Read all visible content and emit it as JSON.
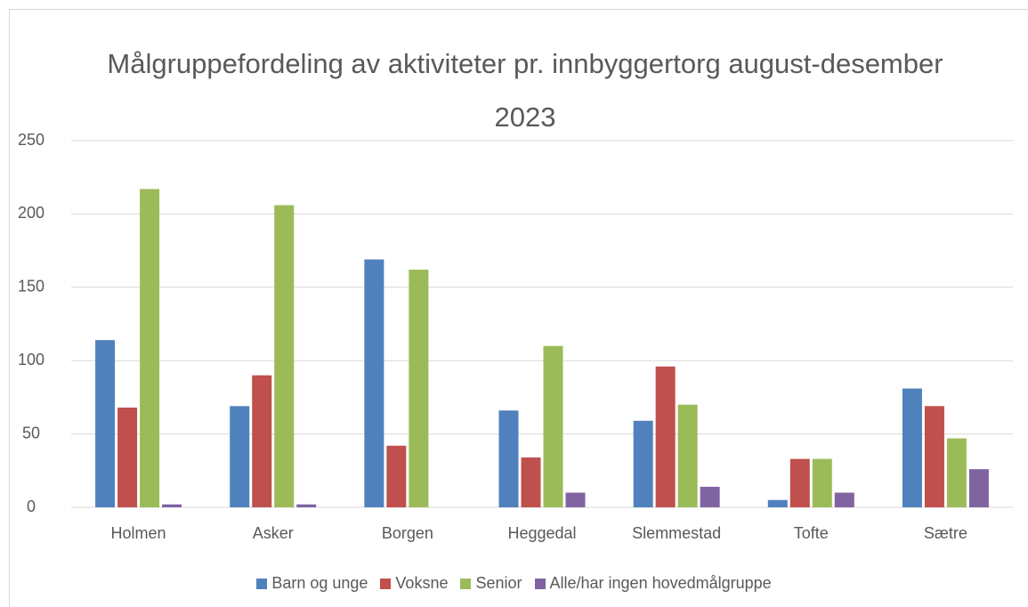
{
  "chart_data": {
    "type": "bar",
    "title": "Målgruppefordeling av aktiviteter pr. innbyggertorg august-desember 2023",
    "categories": [
      "Holmen",
      "Asker",
      "Borgen",
      "Heggedal",
      "Slemmestad",
      "Tofte",
      "Sætre"
    ],
    "series": [
      {
        "name": "Barn og unge",
        "color": "#4f81bd",
        "values": [
          114,
          69,
          169,
          66,
          59,
          5,
          81
        ]
      },
      {
        "name": "Voksne",
        "color": "#c0504d",
        "values": [
          68,
          90,
          42,
          34,
          96,
          33,
          69
        ]
      },
      {
        "name": "Senior",
        "color": "#9bbb59",
        "values": [
          217,
          206,
          162,
          110,
          70,
          33,
          47
        ]
      },
      {
        "name": "Alle/har ingen hovedmålgruppe",
        "color": "#8064a2",
        "values": [
          2,
          2,
          0,
          10,
          14,
          10,
          26
        ]
      }
    ],
    "ylim": [
      0,
      250
    ],
    "yticks": [
      0,
      50,
      100,
      150,
      200,
      250
    ],
    "grid": true,
    "legend": "bottom"
  }
}
